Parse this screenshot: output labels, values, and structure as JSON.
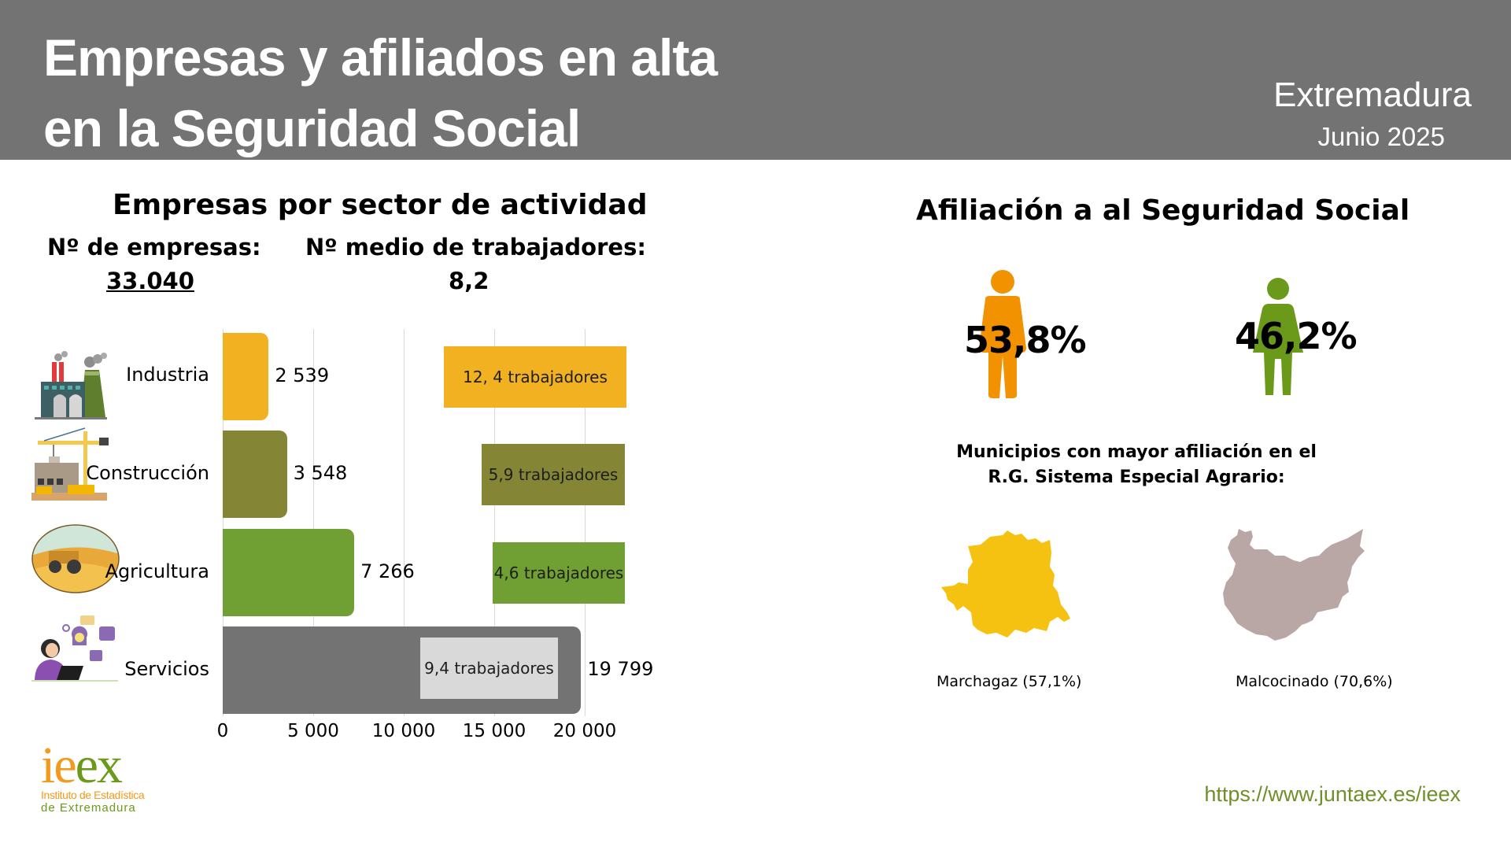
{
  "header": {
    "title_line1": "Empresas y afiliados en alta",
    "title_line2": "en la Seguridad Social",
    "region": "Extremadura",
    "period": "Junio 2025"
  },
  "empresas": {
    "heading": "Empresas por sector de actividad",
    "total_label": "Nº de empresas:",
    "total_value": "33.040",
    "avg_label": "Nº medio de trabajadores:",
    "avg_value": "8,2"
  },
  "chart_data": {
    "type": "bar",
    "orientation": "horizontal",
    "title": "Empresas por sector de actividad",
    "categories": [
      "Industria",
      "Construcción",
      "Agricultura",
      "Servicios"
    ],
    "values": [
      2539,
      3548,
      7266,
      19799
    ],
    "value_labels": [
      "2 539",
      "3 548",
      "7 266",
      "19 799"
    ],
    "avg_workers_labels": [
      "12, 4 trabajadores",
      "5,9 trabajadores",
      "4,6 trabajadores",
      "9,4 trabajadores"
    ],
    "avg_workers": [
      12.4,
      5.9,
      4.6,
      9.4
    ],
    "colors": [
      "#f1b120",
      "#848636",
      "#70a034",
      "#737373"
    ],
    "avg_box_colors": [
      "#f1b120",
      "#848636",
      "#70a034",
      "#d9d9d9"
    ],
    "icons": [
      "factory-icon",
      "construction-crane-icon",
      "tractor-field-icon",
      "office-worker-icon"
    ],
    "xlim": [
      0,
      20000
    ],
    "xticks": [
      0,
      5000,
      10000,
      15000,
      20000
    ],
    "xtick_labels": [
      "0",
      "5 000",
      "10 000",
      "15 000",
      "20 000"
    ],
    "xlabel": "",
    "ylabel": "",
    "grid": true
  },
  "afiliacion": {
    "heading": "Afiliación a al Seguridad Social",
    "men_pct": "53,8%",
    "men_color": "#f39200",
    "women_pct": "46,2%",
    "women_color": "#6b9a1a",
    "municipios_heading_line1": "Municipios con mayor afiliación en el",
    "municipios_heading_line2": "R.G. Sistema Especial Agrario:",
    "municipios": [
      {
        "name": "Marchagaz (57,1%)",
        "province_color": "#f6c211"
      },
      {
        "name": "Malcocinado (70,6%)",
        "province_color": "#b8a7a4"
      }
    ]
  },
  "footer": {
    "logo_main_i_e": "ie",
    "logo_main_ex": "ex",
    "logo_line1": "Instituto de Estadística",
    "logo_line2": "de Extremadura",
    "url": "https://www.juntaex.es/ieex"
  }
}
